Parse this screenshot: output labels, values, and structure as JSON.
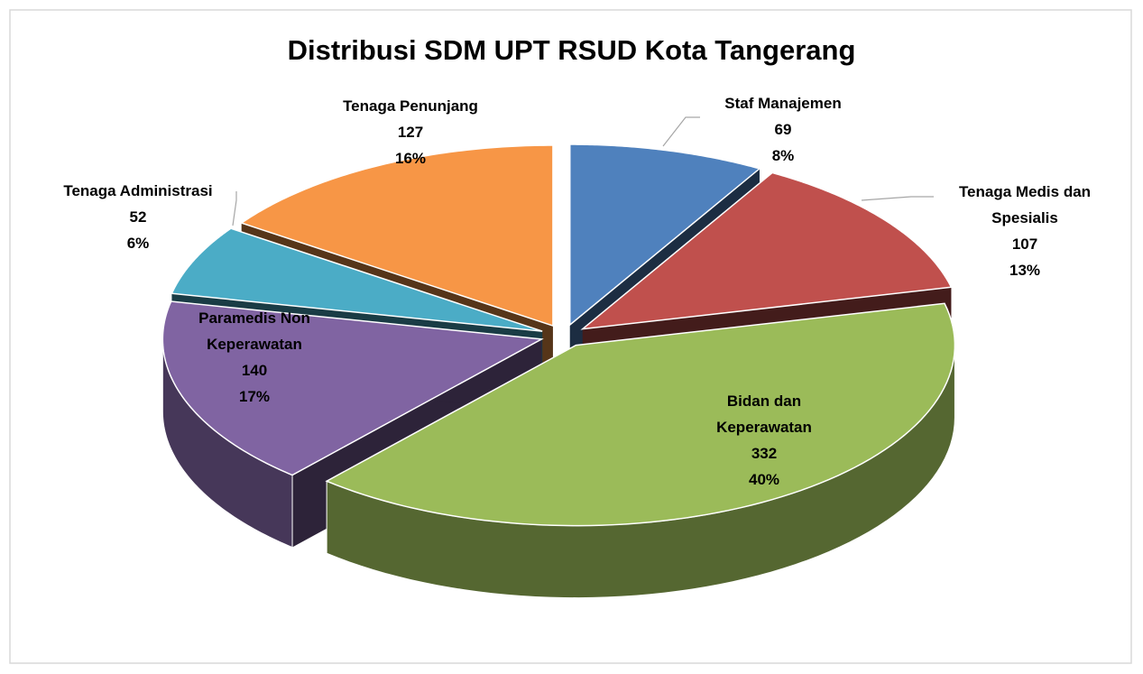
{
  "chart_data": {
    "type": "pie",
    "title": "Distribusi SDM UPT RSUD Kota Tangerang",
    "categories": [
      "Staf Manajemen",
      "Tenaga Medis dan Spesialis",
      "Bidan dan Keperawatan",
      "Paramedis Non Keperawatan",
      "Tenaga Administrasi",
      "Tenaga Penunjang"
    ],
    "values": [
      69,
      107,
      332,
      140,
      52,
      127
    ],
    "percents": [
      8,
      13,
      40,
      17,
      6,
      16
    ],
    "percent_labels": [
      "8%",
      "13%",
      "40%",
      "17%",
      "6%",
      "16%"
    ],
    "colors": [
      "#4f81bd",
      "#c0504d",
      "#9bbb59",
      "#8064a2",
      "#4bacc6",
      "#f79646"
    ]
  }
}
